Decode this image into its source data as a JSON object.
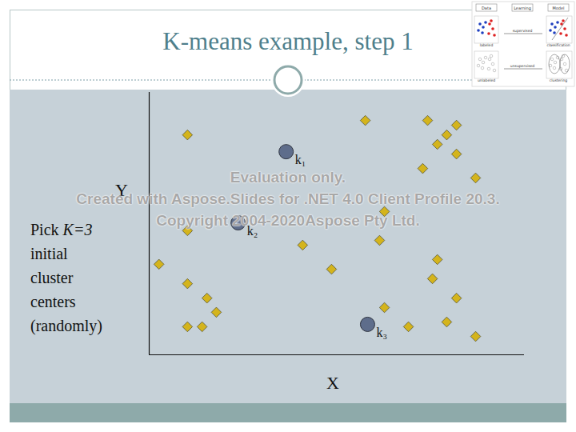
{
  "chart_data": {
    "type": "scatter",
    "title": "K-means example, step 1",
    "x_label": "X",
    "y_label": "Y",
    "annotation": {
      "lines": [
        "Pick K=3",
        "initial",
        "cluster",
        "centers",
        "(randomly)"
      ],
      "italic": "K=3"
    },
    "xlim": [
      0,
      10
    ],
    "ylim": [
      0,
      10
    ],
    "xticks": [],
    "yticks": [],
    "tick_labels": false,
    "grid": false,
    "x": [
      1.02,
      5.76,
      7.42,
      8.19,
      7.93,
      7.68,
      8.19,
      7.29,
      8.7,
      6.27,
      1.02,
      4.09,
      6.14,
      0.26,
      4.86,
      7.68,
      7.55,
      1.02,
      1.54,
      8.19,
      1.79,
      6.27,
      1.02,
      1.41,
      6.91,
      7.93,
      8.7
    ],
    "y": [
      8.38,
      8.93,
      8.93,
      8.75,
      8.38,
      8.02,
      7.65,
      7.1,
      6.74,
      5.46,
      4.73,
      4.18,
      4.36,
      3.45,
      3.26,
      3.63,
      2.9,
      2.71,
      2.16,
      2.16,
      1.62,
      1.8,
      1.07,
      1.07,
      1.07,
      1.25,
      0.7
    ],
    "color": "#d4b41c",
    "marker": "diamond",
    "centers": {
      "labels": [
        "k₁",
        "k₂",
        "k₃"
      ],
      "x": [
        3.65,
        2.37,
        5.82
      ],
      "y": [
        7.74,
        5.03,
        1.16
      ],
      "color": "#5e6d8b",
      "marker": "circle"
    }
  },
  "slide": {
    "watermark": [
      "Evaluation only.",
      "Created with Aspose.Slides for .NET 4.0 Client Profile 20.3.",
      "Copyright 2004-2020Aspose Pty Ltd."
    ],
    "thumbnail": {
      "header": [
        "Data",
        "Learning",
        "Model"
      ],
      "top_row": [
        "labeled",
        "supervised",
        "classification"
      ],
      "bottom_row": [
        "unlabeled",
        "unsupervised",
        "clustering"
      ]
    }
  }
}
